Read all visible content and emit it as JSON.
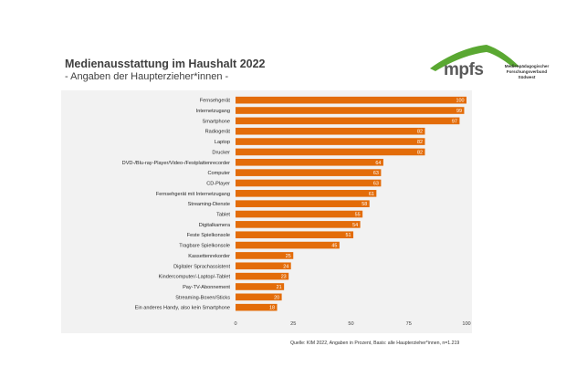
{
  "header": {
    "title": "Medienausstattung im Haushalt 2022",
    "subtitle": "- Angaben der Haupterzieher*innen -"
  },
  "logo": {
    "name": "mpfs",
    "org_lines": [
      "Medienpädagogischer",
      "Forschungsverbund",
      "Südwest"
    ]
  },
  "source": "Quelle: KIM 2022, Angaben in Prozent, Basis: alle Haupterzieher*innen, n=1.219",
  "colors": {
    "bar": "#e36c09",
    "logo_green": "#5aa832",
    "panel": "#f2f2f2"
  },
  "chart_data": {
    "type": "bar",
    "orientation": "horizontal",
    "title": "Medienausstattung im Haushalt 2022",
    "subtitle": "- Angaben der Haupterzieher*innen -",
    "xlabel": "",
    "ylabel": "",
    "xlim": [
      0,
      100
    ],
    "ticks": [
      0,
      25,
      50,
      75,
      100
    ],
    "grid": false,
    "categories": [
      "Fernsehgerät",
      "Internetzugang",
      "Smartphone",
      "Radiogerät",
      "Laptop",
      "Drucker",
      "DVD-/Blu-ray-Player/Video-/Festplattenrecorder",
      "Computer",
      "CD-Player",
      "Fernsehgerät mit Internetzugang",
      "Streaming-Dienste",
      "Tablet",
      "Digitalkamera",
      "Feste Spielkonsole",
      "Tragbare Spielkonsole",
      "Kassettenrekorder",
      "Digitaler Sprachassistent",
      "Kindercomputer/-Laptop/-Tablet",
      "Pay-TV-Abonnement",
      "Streaming-Boxen/Sticks",
      "Ein anderes Handy, also kein Smartphone"
    ],
    "values": [
      100,
      99,
      97,
      82,
      82,
      82,
      64,
      63,
      63,
      61,
      58,
      55,
      54,
      51,
      45,
      25,
      24,
      23,
      21,
      20,
      18
    ]
  }
}
